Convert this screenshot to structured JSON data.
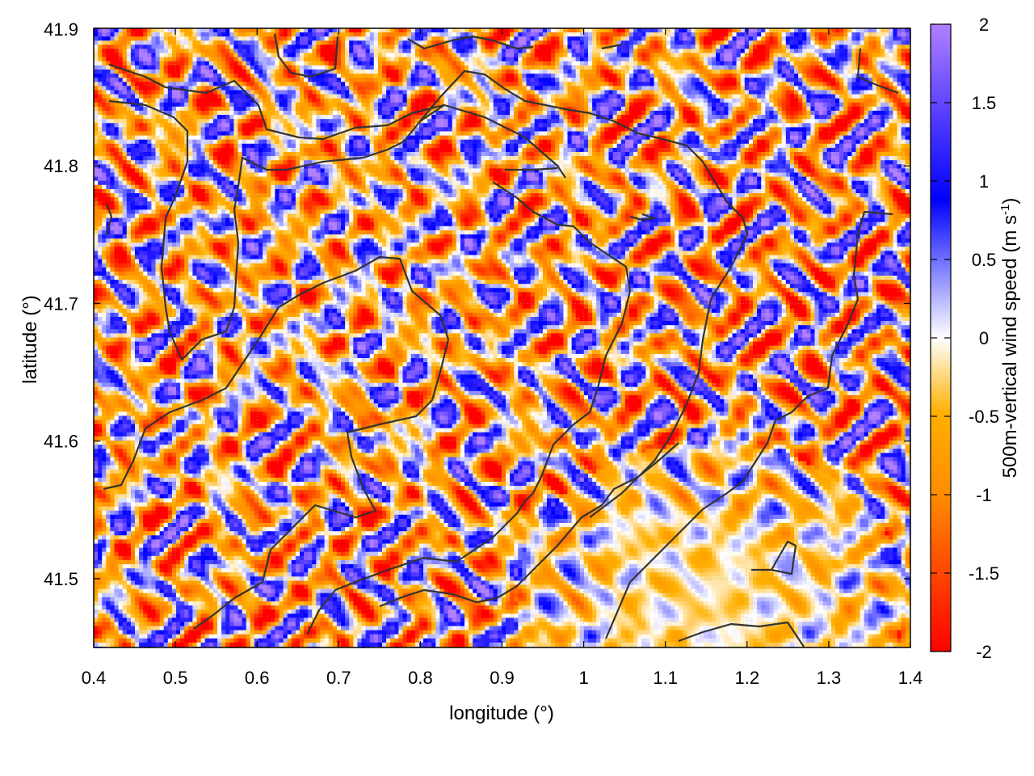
{
  "chart_data": {
    "type": "heatmap",
    "title": "",
    "xlabel": "longitude (°)",
    "ylabel": "latitude (°)",
    "colorbar_label": "500m-vertical wind speed (m s-1)",
    "xlim": [
      0.4,
      1.4
    ],
    "ylim": [
      41.45,
      41.9
    ],
    "x_ticks": [
      "0.4",
      "0.5",
      "0.6",
      "0.7",
      "0.8",
      "0.9",
      "1",
      "1.1",
      "1.2",
      "1.3",
      "1.4"
    ],
    "y_ticks": [
      "41.5",
      "41.6",
      "41.7",
      "41.8",
      "41.9"
    ],
    "colorbar_range": [
      -2,
      2
    ],
    "colorbar_ticks": [
      "-2",
      "-1.5",
      "-1",
      "-0.5",
      "0",
      "0.5",
      "1",
      "1.5",
      "2"
    ],
    "colormap": [
      "#ff0000",
      "#ff8c00",
      "#ffb000",
      "#ffffff",
      "#0000ff",
      "#b080ff"
    ],
    "grid": true,
    "overlay": "contour lines",
    "overlay_color": "#333333"
  }
}
